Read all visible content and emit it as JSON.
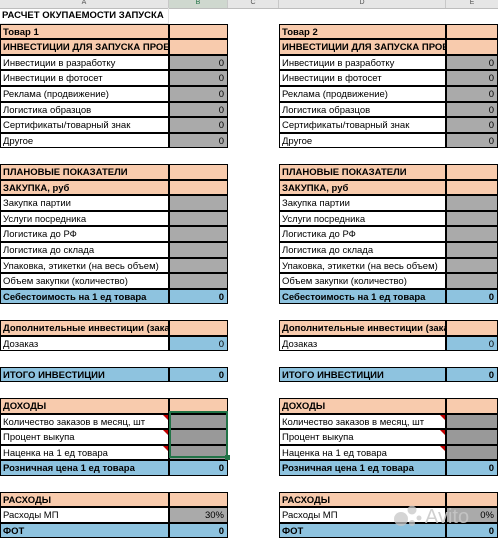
{
  "columns": [
    "A",
    "B",
    "C",
    "D",
    "E"
  ],
  "sheet_title": "РАСЧЕТ ОКУПАЕМОСТИ ЗАПУСКА",
  "products": [
    {
      "name": "Товар 1",
      "investments_header": "ИНВЕСТИЦИИ ДЛЯ ЗАПУСКА ПРОЕКТА, руб.",
      "investments": [
        {
          "label": "Инвестиции в разработку",
          "value": "0"
        },
        {
          "label": "Инвестиции в фотосет",
          "value": "0"
        },
        {
          "label": "Реклама (продвижение)",
          "value": "0"
        },
        {
          "label": "Логистика образцов",
          "value": "0"
        },
        {
          "label": "Сертификаты/товарный знак",
          "value": "0"
        },
        {
          "label": "Другое",
          "value": "0"
        }
      ],
      "plan_header": "ПЛАНОВЫЕ ПОКАЗАТЕЛИ",
      "purchase_header": "ЗАКУПКА, руб",
      "purchase": [
        {
          "label": "Закупка партии",
          "value": ""
        },
        {
          "label": "Услуги посредника",
          "value": ""
        },
        {
          "label": "Логистика до РФ",
          "value": ""
        },
        {
          "label": "Логистика до склада",
          "value": ""
        },
        {
          "label": "Упаковка, этикетки (на весь объем)",
          "value": ""
        },
        {
          "label": "Объем закупки (количество)",
          "value": ""
        }
      ],
      "cost": {
        "label": "Себестоимость на 1 ед товара",
        "value": "0"
      },
      "extra_header": "Дополнительные инвестиции (заказы)",
      "reorder": {
        "label": "Дозаказ",
        "value": "0"
      },
      "total": {
        "label": "ИТОГО ИНВЕСТИЦИИ",
        "value": "0"
      },
      "income_header": "ДОХОДЫ",
      "income": [
        {
          "label": "Количество заказов в месяц, шт",
          "value": ""
        },
        {
          "label": "Процент выкупа",
          "value": ""
        },
        {
          "label": "Наценка на 1 ед товара",
          "value": ""
        }
      ],
      "retail": {
        "label": "Розничная цена 1 ед товара",
        "value": "0"
      },
      "expenses_header": "РАСХОДЫ",
      "mp": {
        "label": "Расходы МП",
        "value": "30%"
      },
      "fot": {
        "label": "ФОТ",
        "value": "0"
      }
    },
    {
      "name": "Товар 2",
      "investments_header": "ИНВЕСТИЦИИ ДЛЯ ЗАПУСКА ПРОЕКТА, руб.",
      "investments": [
        {
          "label": "Инвестиции в разработку",
          "value": "0"
        },
        {
          "label": "Инвестиции в фотосет",
          "value": "0"
        },
        {
          "label": "Реклама (продвижение)",
          "value": "0"
        },
        {
          "label": "Логистика образцов",
          "value": "0"
        },
        {
          "label": "Сертификаты/товарный знак",
          "value": "0"
        },
        {
          "label": "Другое",
          "value": "0"
        }
      ],
      "plan_header": "ПЛАНОВЫЕ ПОКАЗАТЕЛИ",
      "purchase_header": "ЗАКУПКА, руб",
      "purchase": [
        {
          "label": "Закупка партии",
          "value": ""
        },
        {
          "label": "Услуги посредника",
          "value": ""
        },
        {
          "label": "Логистика до РФ",
          "value": ""
        },
        {
          "label": "Логистика до склада",
          "value": ""
        },
        {
          "label": "Упаковка, этикетки (на весь объем)",
          "value": ""
        },
        {
          "label": "Объем закупки (количество)",
          "value": ""
        }
      ],
      "cost": {
        "label": "Себестоимость на 1 ед товара",
        "value": "0"
      },
      "extra_header": "Дополнительные инвестиции (заказы)",
      "reorder": {
        "label": "Дозаказ",
        "value": "0"
      },
      "total": {
        "label": "ИТОГО ИНВЕСТИЦИИ",
        "value": "0"
      },
      "income_header": "ДОХОДЫ",
      "income": [
        {
          "label": "Количество заказов в месяц, шт",
          "value": ""
        },
        {
          "label": "Процент выкупа",
          "value": ""
        },
        {
          "label": "Наценка на 1 ед товара",
          "value": ""
        }
      ],
      "retail": {
        "label": "Розничная цена 1 ед товара",
        "value": "0"
      },
      "expenses_header": "РАСХОДЫ",
      "mp": {
        "label": "Расходы МП",
        "value": "0%"
      },
      "fot": {
        "label": "ФОТ",
        "value": "0"
      }
    }
  ],
  "watermark": "Avito"
}
